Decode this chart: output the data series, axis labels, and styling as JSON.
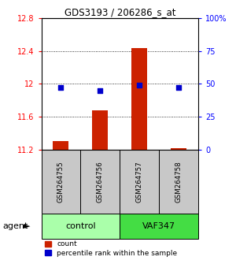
{
  "title": "GDS3193 / 206286_s_at",
  "samples": [
    "GSM264755",
    "GSM264756",
    "GSM264757",
    "GSM264758"
  ],
  "bar_values": [
    11.3,
    11.68,
    12.44,
    11.22
  ],
  "bar_bottom": 11.2,
  "percentile_values": [
    47,
    45,
    49,
    47
  ],
  "ylim_left": [
    11.2,
    12.8
  ],
  "ylim_right": [
    0,
    100
  ],
  "yticks_left": [
    11.2,
    11.6,
    12.0,
    12.4,
    12.8
  ],
  "ytick_labels_left": [
    "11.2",
    "11.6",
    "12",
    "12.4",
    "12.8"
  ],
  "yticks_right": [
    0,
    25,
    50,
    75,
    100
  ],
  "ytick_labels_right": [
    "0",
    "25",
    "50",
    "75",
    "100%"
  ],
  "bar_color": "#CC2200",
  "dot_color": "#0000CC",
  "gridline_y": [
    11.6,
    12.0,
    12.4
  ],
  "legend_count_label": "count",
  "legend_pct_label": "percentile rank within the sample",
  "sample_box_color": "#C8C8C8",
  "control_color": "#AAFFAA",
  "vaf_color": "#44DD44",
  "bar_width": 0.4
}
